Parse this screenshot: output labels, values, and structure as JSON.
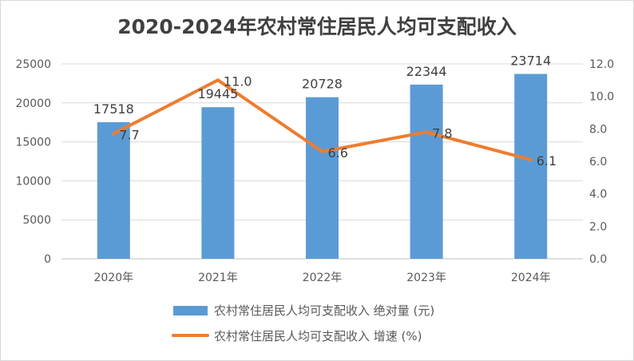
{
  "chart_data": {
    "type": "bar",
    "title": "2020-2024年农村常住居民人均可支配收入",
    "categories": [
      "2020年",
      "2021年",
      "2022年",
      "2023年",
      "2024年"
    ],
    "series": [
      {
        "name": "农村常住居民人均可支配收入 绝对量 (元)",
        "type": "bar",
        "axis": "left",
        "color": "#5b9bd5",
        "values": [
          17518,
          19445,
          20728,
          22344,
          23714
        ],
        "labels": [
          "17518",
          "19445",
          "20728",
          "22344",
          "23714"
        ]
      },
      {
        "name": "农村常住居民人均可支配收入 增速 (%)",
        "type": "line",
        "axis": "right",
        "color": "#ed7d31",
        "values": [
          7.7,
          11.0,
          6.6,
          7.8,
          6.1
        ],
        "labels": [
          "7.7",
          "11.0",
          "6.6",
          "7.8",
          "6.1"
        ]
      }
    ],
    "left_axis": {
      "ylim": [
        0,
        25000
      ],
      "ticks": [
        "0",
        "5000",
        "10000",
        "15000",
        "20000",
        "25000"
      ]
    },
    "right_axis": {
      "ylim": [
        0,
        12
      ],
      "ticks": [
        "0.0",
        "2.0",
        "4.0",
        "6.0",
        "8.0",
        "10.0",
        "12.0"
      ]
    },
    "grid": true,
    "legend_position": "bottom"
  }
}
